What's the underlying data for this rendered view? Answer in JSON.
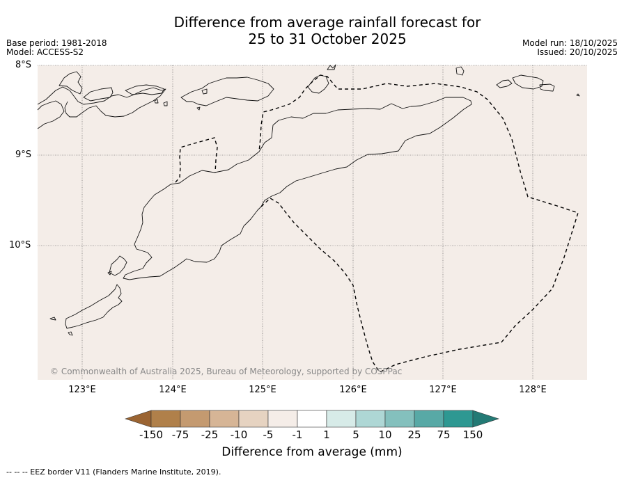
{
  "title": {
    "line1": "Difference from average rainfall forecast for",
    "line2": "25 to 31 October 2025"
  },
  "meta": {
    "base_period": "Base period: 1981-2018",
    "model": "Model: ACCESS-S2",
    "model_run": "Model run: 18/10/2025",
    "issued": "Issued: 20/10/2025"
  },
  "map": {
    "background_color": "#f4ede8",
    "lat_labels": [
      "8°S",
      "9°S",
      "10°S"
    ],
    "lon_labels": [
      "123°E",
      "124°E",
      "125°E",
      "126°E",
      "127°E",
      "128°E"
    ],
    "credit": "© Commonwealth of Australia 2025, Bureau of Meteorology, supported by COSPPac"
  },
  "colorbar": {
    "labels": [
      "-150",
      "-75",
      "-25",
      "-10",
      "-5",
      "-1",
      "1",
      "5",
      "10",
      "25",
      "75",
      "150"
    ],
    "colors": [
      "#9b6432",
      "#b0804a",
      "#c49a70",
      "#d6b596",
      "#e6d3c1",
      "#f5ede8",
      "#ffffff",
      "#d7ebe8",
      "#aed7d5",
      "#84c0bd",
      "#58a9a6",
      "#2e9892",
      "#237a75"
    ],
    "title": "Difference from average (mm)"
  },
  "footer": "--  --  -- EEZ border V11 (Flanders Marine Institute, 2019)."
}
